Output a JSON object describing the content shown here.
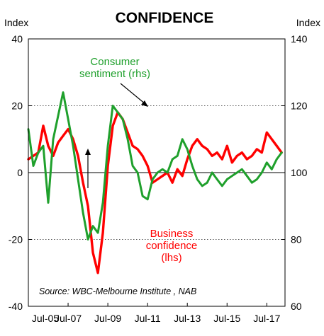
{
  "chart_data": {
    "type": "line",
    "title": "CONFIDENCE",
    "ylabel_left": "Index",
    "ylabel_right": "Index",
    "source": "Source: WBC-Melbourne Institute , NAB",
    "x_ticks": [
      "Jul-05",
      "Jul-07",
      "Jul-09",
      "Jul-11",
      "Jul-13",
      "Jul-15",
      "Jul-17"
    ],
    "x_range": [
      "2005-07",
      "2018-06"
    ],
    "y_left": {
      "range": [
        -40,
        40
      ],
      "ticks": [
        -40,
        -20,
        0,
        20,
        40
      ]
    },
    "y_right": {
      "range": [
        60,
        140
      ],
      "ticks": [
        60,
        80,
        100,
        120,
        140
      ]
    },
    "gridlines": [
      20,
      -20
    ],
    "grid": "dotted horizontal",
    "series": [
      {
        "name": "Business confidence (lhs)",
        "label_lines": [
          "Business",
          "confidence",
          "(lhs)"
        ],
        "axis": "left",
        "color": "#ff0000",
        "x": [
          "2005-07",
          "2005-10",
          "2006-01",
          "2006-04",
          "2006-07",
          "2006-10",
          "2007-01",
          "2007-04",
          "2007-07",
          "2007-10",
          "2008-01",
          "2008-04",
          "2008-07",
          "2008-10",
          "2009-01",
          "2009-04",
          "2009-07",
          "2009-10",
          "2010-01",
          "2010-04",
          "2010-07",
          "2010-10",
          "2011-01",
          "2011-04",
          "2011-07",
          "2011-10",
          "2012-01",
          "2012-04",
          "2012-07",
          "2012-10",
          "2013-01",
          "2013-04",
          "2013-07",
          "2013-10",
          "2014-01",
          "2014-04",
          "2014-07",
          "2014-10",
          "2015-01",
          "2015-04",
          "2015-07",
          "2015-10",
          "2016-01",
          "2016-04",
          "2016-07",
          "2016-10",
          "2017-01",
          "2017-04",
          "2017-07",
          "2017-10",
          "2018-01",
          "2018-04"
        ],
        "values": [
          4,
          5,
          6,
          14,
          8,
          5,
          9,
          11,
          13,
          10,
          5,
          -3,
          -10,
          -24,
          -30,
          -18,
          2,
          14,
          18,
          16,
          12,
          8,
          7,
          5,
          2,
          -3,
          -2,
          -1,
          0,
          -3,
          1,
          -1,
          4,
          8,
          10,
          8,
          7,
          5,
          6,
          4,
          8,
          3,
          5,
          6,
          4,
          5,
          7,
          6,
          12,
          10,
          8,
          6
        ]
      },
      {
        "name": "Consumer sentiment (rhs)",
        "label_lines": [
          "Consumer",
          "sentiment (rhs)"
        ],
        "axis": "right",
        "color": "#1fa02c",
        "x": [
          "2005-07",
          "2005-10",
          "2006-01",
          "2006-04",
          "2006-07",
          "2006-10",
          "2007-01",
          "2007-04",
          "2007-07",
          "2007-10",
          "2008-01",
          "2008-04",
          "2008-07",
          "2008-10",
          "2009-01",
          "2009-04",
          "2009-07",
          "2009-10",
          "2010-01",
          "2010-04",
          "2010-07",
          "2010-10",
          "2011-01",
          "2011-04",
          "2011-07",
          "2011-10",
          "2012-01",
          "2012-04",
          "2012-07",
          "2012-10",
          "2013-01",
          "2013-04",
          "2013-07",
          "2013-10",
          "2014-01",
          "2014-04",
          "2014-07",
          "2014-10",
          "2015-01",
          "2015-04",
          "2015-07",
          "2015-10",
          "2016-01",
          "2016-04",
          "2016-07",
          "2016-10",
          "2017-01",
          "2017-04",
          "2017-07",
          "2017-10",
          "2018-01",
          "2018-04"
        ],
        "values": [
          113,
          102,
          106,
          108,
          91,
          110,
          117,
          124,
          116,
          108,
          98,
          88,
          80,
          84,
          82,
          91,
          108,
          120,
          118,
          116,
          110,
          102,
          100,
          93,
          92,
          98,
          100,
          101,
          100,
          104,
          105,
          110,
          107,
          102,
          98,
          96,
          97,
          100,
          98,
          96,
          98,
          99,
          100,
          101,
          99,
          97,
          98,
          100,
          103,
          101,
          104,
          106
        ]
      }
    ],
    "annotations": [
      {
        "text_lines": [
          "Consumer",
          "sentiment (rhs)"
        ],
        "color": "#1fa02c"
      },
      {
        "text_lines": [
          "Business",
          "confidence",
          "(lhs)"
        ],
        "color": "#ff0000"
      }
    ]
  }
}
